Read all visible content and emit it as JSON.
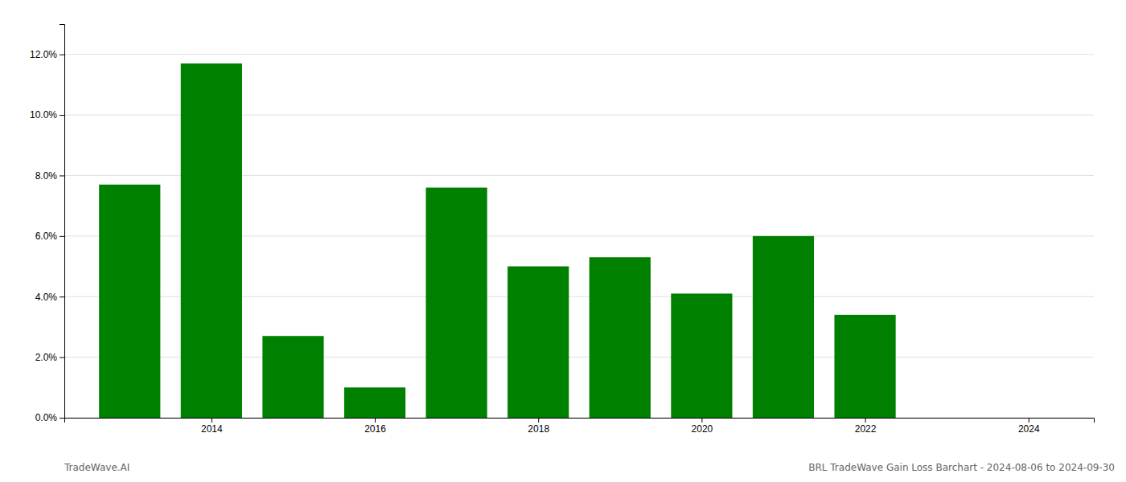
{
  "chart_data": {
    "type": "bar",
    "x": [
      2013,
      2014,
      2015,
      2016,
      2017,
      2018,
      2019,
      2020,
      2021,
      2022,
      2023
    ],
    "values": [
      0.077,
      0.117,
      0.027,
      0.01,
      0.076,
      0.05,
      0.053,
      0.041,
      0.06,
      0.034,
      0.0
    ],
    "color": "#008000",
    "xlim": [
      2012.2,
      2024.8
    ],
    "xticks": [
      2014,
      2016,
      2018,
      2020,
      2022,
      2024
    ],
    "ylim": [
      0,
      0.13
    ],
    "yticks": [
      {
        "value": 0.0,
        "label": "0.0%"
      },
      {
        "value": 0.02,
        "label": "2.0%"
      },
      {
        "value": 0.04,
        "label": "4.0%"
      },
      {
        "value": 0.06,
        "label": "6.0%"
      },
      {
        "value": 0.08,
        "label": "8.0%"
      },
      {
        "value": 0.1,
        "label": "10.0%"
      },
      {
        "value": 0.12,
        "label": "12.0%"
      }
    ],
    "grid": true,
    "annotations": [
      "TradeWave.AI",
      "BRL TradeWave Gain Loss Barchart - 2024-08-06 to 2024-09-30"
    ]
  }
}
